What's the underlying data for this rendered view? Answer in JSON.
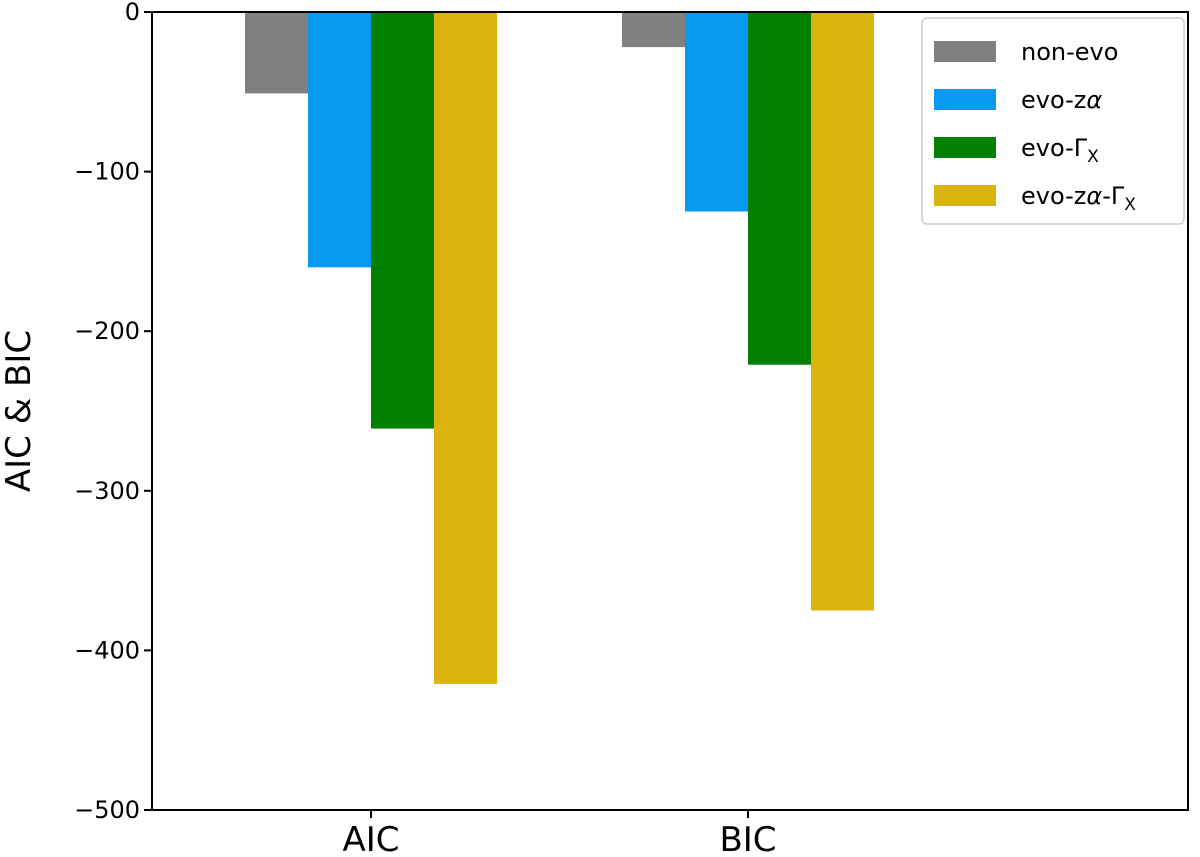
{
  "chart_data": {
    "type": "bar",
    "title": "",
    "xlabel": "",
    "ylabel": "AIC & BIC",
    "categories": [
      "AIC",
      "BIC"
    ],
    "ylim": [
      -500,
      0
    ],
    "yticks": [
      0,
      -100,
      -200,
      -300,
      -400,
      -500
    ],
    "ytick_labels": [
      "0",
      "−100",
      "−200",
      "−300",
      "−400",
      "−500"
    ],
    "grid": false,
    "legend_position": "top-right",
    "series": [
      {
        "name": "non-evo",
        "color": "#808080",
        "values": [
          -51,
          -22
        ]
      },
      {
        "name": "evo-zα",
        "color": "#0a99f0",
        "values": [
          -160,
          -125
        ]
      },
      {
        "name": "evo-ΓX",
        "color": "#028002",
        "values": [
          -261,
          -221
        ]
      },
      {
        "name": "evo-zα-ΓX",
        "color": "#dab30f",
        "values": [
          -421,
          -375
        ]
      }
    ]
  }
}
